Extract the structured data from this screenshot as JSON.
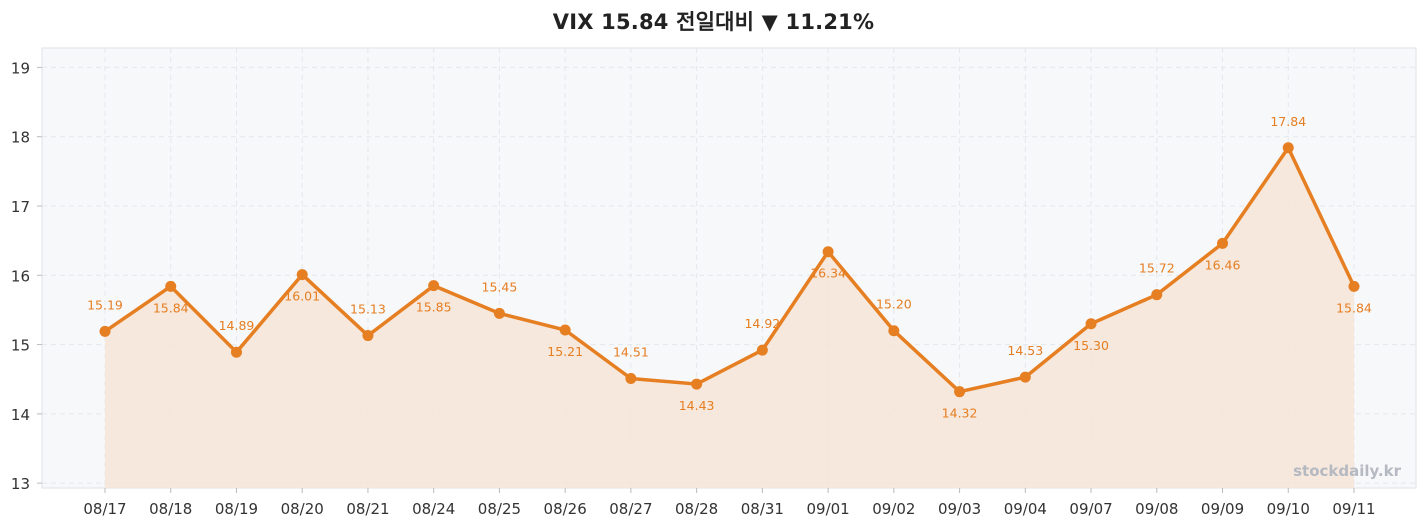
{
  "chart_data": {
    "type": "line",
    "title": "VIX  15.84  전일대비 ▼ 11.21%",
    "x": [
      "08/17",
      "08/18",
      "08/19",
      "08/20",
      "08/21",
      "08/24",
      "08/25",
      "08/26",
      "08/27",
      "08/28",
      "08/31",
      "09/01",
      "09/02",
      "09/03",
      "09/04",
      "09/07",
      "09/08",
      "09/09",
      "09/10",
      "09/11"
    ],
    "series": [
      {
        "name": "",
        "values": [
          15.19,
          15.84,
          14.89,
          16.01,
          15.13,
          15.85,
          15.45,
          15.21,
          14.51,
          14.43,
          14.92,
          16.34,
          15.2,
          14.32,
          14.53,
          15.3,
          15.72,
          16.46,
          17.84,
          15.84
        ],
        "labels": [
          "15.19",
          "15.84",
          "14.89",
          "16.01",
          "15.13",
          "15.85",
          "15.45",
          "15.21",
          "14.51",
          "14.43",
          "14.92",
          "16.34",
          "15.20",
          "14.32",
          "14.53",
          "15.30",
          "15.72",
          "16.46",
          "17.84",
          "15.84"
        ],
        "label_pos": [
          "above",
          "below",
          "above",
          "below",
          "above",
          "below",
          "above",
          "below",
          "above",
          "below",
          "above",
          "below",
          "above",
          "below",
          "above",
          "below",
          "above",
          "below",
          "above",
          "below"
        ]
      }
    ],
    "yticks": [
      "13",
      "14",
      "15",
      "16",
      "17",
      "18",
      "19"
    ],
    "ylim": [
      12.93,
      19.28
    ],
    "grid": true,
    "area_fill": true,
    "colors": {
      "line": "#e67e22",
      "area": "#f5e6d8",
      "plot_bg": "#f7f8fa",
      "grid": "#e4e7ec"
    },
    "watermark": "stockdaily.kr"
  }
}
